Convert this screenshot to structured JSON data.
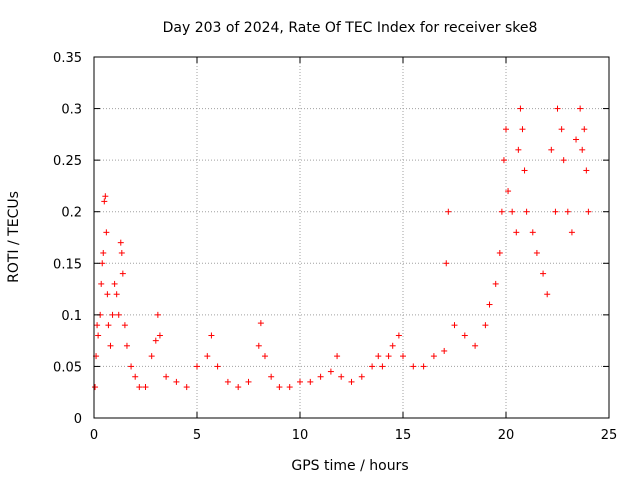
{
  "chart_data": {
    "type": "scatter",
    "title": "Day 203 of 2024, Rate Of TEC Index for receiver ske8",
    "xlabel": "GPS time / hours",
    "ylabel": "ROTI / TECUs",
    "xlim": [
      0,
      25
    ],
    "ylim": [
      0,
      0.35
    ],
    "xticks": [
      0,
      5,
      10,
      15,
      20,
      25
    ],
    "yticks": [
      0,
      0.05,
      0.1,
      0.15,
      0.2,
      0.25,
      0.3,
      0.35
    ],
    "xtick_labels": [
      "0",
      "5",
      "10",
      "15",
      "20",
      "25"
    ],
    "ytick_labels": [
      "0",
      "0.05",
      "0.1",
      "0.15",
      "0.2",
      "0.25",
      "0.3",
      "0.35"
    ],
    "grid": true,
    "marker": "+",
    "color": "#ff0000",
    "series": [
      {
        "values": [
          [
            0.05,
            0.03
          ],
          [
            0.1,
            0.06
          ],
          [
            0.15,
            0.09
          ],
          [
            0.2,
            0.08
          ],
          [
            0.3,
            0.1
          ],
          [
            0.35,
            0.13
          ],
          [
            0.4,
            0.15
          ],
          [
            0.45,
            0.16
          ],
          [
            0.5,
            0.21
          ],
          [
            0.55,
            0.215
          ],
          [
            0.6,
            0.18
          ],
          [
            0.65,
            0.12
          ],
          [
            0.7,
            0.09
          ],
          [
            0.8,
            0.07
          ],
          [
            0.9,
            0.1
          ],
          [
            1.0,
            0.13
          ],
          [
            1.1,
            0.12
          ],
          [
            1.2,
            0.1
          ],
          [
            1.3,
            0.17
          ],
          [
            1.35,
            0.16
          ],
          [
            1.4,
            0.14
          ],
          [
            1.5,
            0.09
          ],
          [
            1.6,
            0.07
          ],
          [
            1.8,
            0.05
          ],
          [
            2.0,
            0.04
          ],
          [
            2.2,
            0.03
          ],
          [
            2.5,
            0.03
          ],
          [
            2.8,
            0.06
          ],
          [
            3.0,
            0.075
          ],
          [
            3.1,
            0.1
          ],
          [
            3.2,
            0.08
          ],
          [
            3.5,
            0.04
          ],
          [
            4.0,
            0.035
          ],
          [
            4.5,
            0.03
          ],
          [
            5.0,
            0.05
          ],
          [
            5.5,
            0.06
          ],
          [
            5.7,
            0.08
          ],
          [
            6.0,
            0.05
          ],
          [
            6.5,
            0.035
          ],
          [
            7.0,
            0.03
          ],
          [
            7.5,
            0.035
          ],
          [
            8.0,
            0.07
          ],
          [
            8.1,
            0.092
          ],
          [
            8.3,
            0.06
          ],
          [
            8.6,
            0.04
          ],
          [
            9.0,
            0.03
          ],
          [
            9.5,
            0.03
          ],
          [
            10.0,
            0.035
          ],
          [
            10.5,
            0.035
          ],
          [
            11.0,
            0.04
          ],
          [
            11.5,
            0.045
          ],
          [
            11.8,
            0.06
          ],
          [
            12.0,
            0.04
          ],
          [
            12.5,
            0.035
          ],
          [
            13.0,
            0.04
          ],
          [
            13.5,
            0.05
          ],
          [
            13.8,
            0.06
          ],
          [
            14.0,
            0.05
          ],
          [
            14.3,
            0.06
          ],
          [
            14.5,
            0.07
          ],
          [
            14.8,
            0.08
          ],
          [
            15.0,
            0.06
          ],
          [
            15.5,
            0.05
          ],
          [
            16.0,
            0.05
          ],
          [
            16.5,
            0.06
          ],
          [
            17.0,
            0.065
          ],
          [
            17.1,
            0.15
          ],
          [
            17.2,
            0.2
          ],
          [
            17.5,
            0.09
          ],
          [
            18.0,
            0.08
          ],
          [
            18.5,
            0.07
          ],
          [
            19.0,
            0.09
          ],
          [
            19.2,
            0.11
          ],
          [
            19.5,
            0.13
          ],
          [
            19.7,
            0.16
          ],
          [
            19.8,
            0.2
          ],
          [
            19.9,
            0.25
          ],
          [
            20.0,
            0.28
          ],
          [
            20.1,
            0.22
          ],
          [
            20.3,
            0.2
          ],
          [
            20.5,
            0.18
          ],
          [
            20.6,
            0.26
          ],
          [
            20.7,
            0.3
          ],
          [
            20.8,
            0.28
          ],
          [
            20.9,
            0.24
          ],
          [
            21.0,
            0.2
          ],
          [
            21.3,
            0.18
          ],
          [
            21.5,
            0.16
          ],
          [
            21.8,
            0.14
          ],
          [
            22.0,
            0.12
          ],
          [
            22.2,
            0.26
          ],
          [
            22.4,
            0.2
          ],
          [
            22.5,
            0.3
          ],
          [
            22.7,
            0.28
          ],
          [
            22.8,
            0.25
          ],
          [
            23.0,
            0.2
          ],
          [
            23.2,
            0.18
          ],
          [
            23.4,
            0.27
          ],
          [
            23.6,
            0.3
          ],
          [
            23.7,
            0.26
          ],
          [
            23.8,
            0.28
          ],
          [
            23.9,
            0.24
          ],
          [
            24.0,
            0.2
          ]
        ]
      }
    ]
  }
}
